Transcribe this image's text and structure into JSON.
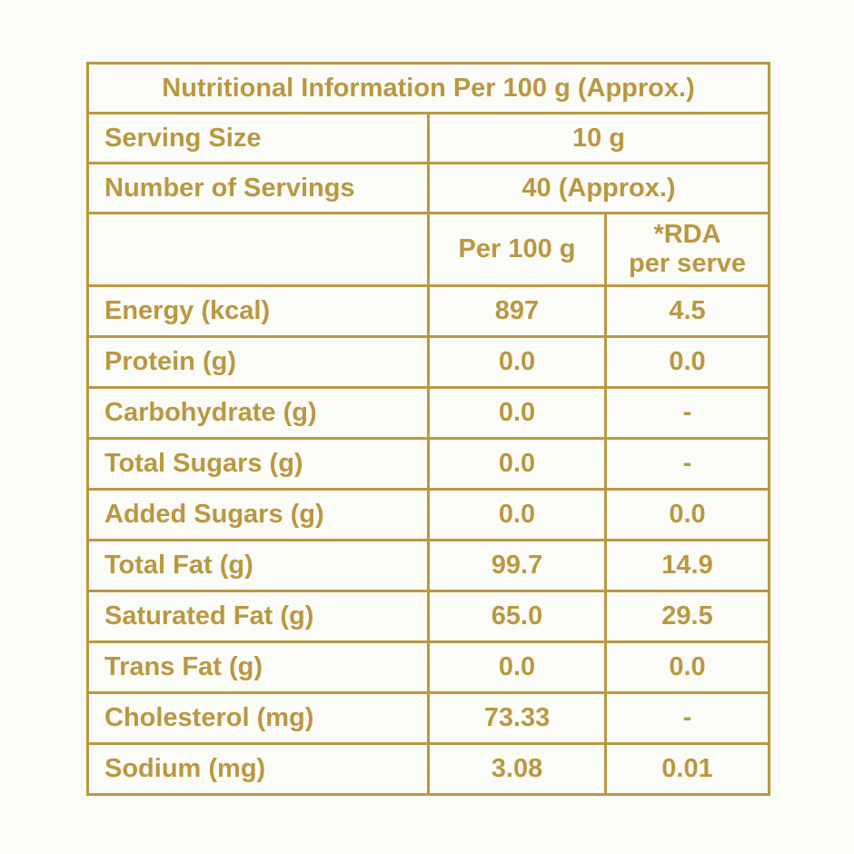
{
  "colors": {
    "gold": "#BA9840",
    "background": "#FBFBF8"
  },
  "table": {
    "title": "Nutritional Information Per 100 g (Approx.)",
    "serving_size": {
      "label": "Serving Size",
      "value": "10 g"
    },
    "number_of_servings": {
      "label": "Number of Servings",
      "value": "40 (Approx.)"
    },
    "columns": {
      "per_100g": "Per 100 g",
      "rda_line1": "*RDA",
      "rda_line2": "per serve"
    },
    "rows": [
      {
        "label": "Energy (kcal)",
        "per_100g": "897",
        "rda": "4.5"
      },
      {
        "label": "Protein (g)",
        "per_100g": "0.0",
        "rda": "0.0"
      },
      {
        "label": "Carbohydrate (g)",
        "per_100g": "0.0",
        "rda": "-"
      },
      {
        "label": "Total Sugars (g)",
        "per_100g": "0.0",
        "rda": "-"
      },
      {
        "label": "Added Sugars (g)",
        "per_100g": "0.0",
        "rda": "0.0"
      },
      {
        "label": "Total Fat (g)",
        "per_100g": "99.7",
        "rda": "14.9"
      },
      {
        "label": "Saturated Fat (g)",
        "per_100g": "65.0",
        "rda": "29.5"
      },
      {
        "label": "Trans Fat (g)",
        "per_100g": "0.0",
        "rda": "0.0"
      },
      {
        "label": "Cholesterol (mg)",
        "per_100g": "73.33",
        "rda": "-"
      },
      {
        "label": "Sodium (mg)",
        "per_100g": "3.08",
        "rda": "0.01"
      }
    ]
  }
}
